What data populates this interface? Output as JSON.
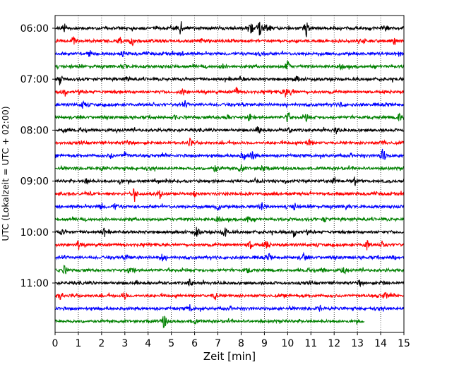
{
  "chart_data": {
    "type": "line",
    "title": "",
    "xlabel": "Zeit  [min]",
    "ylabel": "UTC (Lokalzeit = UTC + 02:00)",
    "xlim": [
      0,
      15
    ],
    "x_ticks": [
      "0",
      "1",
      "2",
      "3",
      "4",
      "5",
      "6",
      "7",
      "8",
      "9",
      "10",
      "11",
      "12",
      "13",
      "14",
      "15"
    ],
    "y_ticks": [
      "06:00",
      "07:00",
      "08:00",
      "09:00",
      "10:00",
      "11:00"
    ],
    "row_interval_min": 15,
    "row_colors": [
      "#000000",
      "#ff0000",
      "#0000ff",
      "#008000"
    ],
    "grid": "vertical dotted",
    "rows": [
      {
        "start": "06:00",
        "color": "#000000",
        "end_min": 15,
        "events": [
          [
            0.4,
            0.5
          ],
          [
            5.4,
            1.0
          ],
          [
            8.4,
            1.0
          ],
          [
            8.8,
            1.0
          ],
          [
            9.1,
            0.6
          ],
          [
            10.8,
            1.0
          ],
          [
            14.2,
            0.4
          ]
        ]
      },
      {
        "start": "06:15",
        "color": "#ff0000",
        "end_min": 15,
        "events": [
          [
            0.8,
            0.4
          ],
          [
            2.8,
            0.4
          ],
          [
            3.3,
            0.6
          ],
          [
            6.3,
            0.3
          ],
          [
            13.3,
            0.3
          ],
          [
            14.6,
            0.4
          ]
        ]
      },
      {
        "start": "06:30",
        "color": "#0000ff",
        "end_min": 15,
        "events": [
          [
            1.5,
            0.3
          ],
          [
            2.9,
            0.3
          ],
          [
            5.5,
            0.3
          ],
          [
            8.9,
            0.5
          ],
          [
            14.8,
            0.4
          ]
        ]
      },
      {
        "start": "06:45",
        "color": "#008000",
        "end_min": 15,
        "events": [
          [
            3.0,
            0.3
          ],
          [
            7.2,
            0.3
          ],
          [
            10.0,
            0.7
          ],
          [
            12.3,
            0.3
          ]
        ]
      },
      {
        "start": "07:00",
        "color": "#000000",
        "end_min": 15,
        "events": [
          [
            0.2,
            0.6
          ],
          [
            3.1,
            0.3
          ],
          [
            8.0,
            0.3
          ],
          [
            10.4,
            0.3
          ]
        ]
      },
      {
        "start": "07:15",
        "color": "#ff0000",
        "end_min": 15,
        "events": [
          [
            0.4,
            0.4
          ],
          [
            5.5,
            0.4
          ],
          [
            7.8,
            0.5
          ],
          [
            9.9,
            0.6
          ],
          [
            10.2,
            0.6
          ]
        ]
      },
      {
        "start": "07:30",
        "color": "#0000ff",
        "end_min": 15,
        "events": [
          [
            1.2,
            0.4
          ],
          [
            5.6,
            0.3
          ],
          [
            12.3,
            0.3
          ]
        ]
      },
      {
        "start": "07:45",
        "color": "#008000",
        "end_min": 15,
        "events": [
          [
            5.1,
            0.4
          ],
          [
            7.4,
            0.4
          ],
          [
            8.4,
            0.5
          ],
          [
            10.0,
            0.7
          ],
          [
            10.8,
            0.4
          ],
          [
            14.8,
            0.5
          ]
        ]
      },
      {
        "start": "08:00",
        "color": "#000000",
        "end_min": 15,
        "events": [
          [
            0.4,
            0.4
          ],
          [
            8.8,
            0.4
          ],
          [
            10.1,
            0.4
          ],
          [
            12.1,
            0.5
          ]
        ]
      },
      {
        "start": "08:15",
        "color": "#ff0000",
        "end_min": 15,
        "events": [
          [
            3.1,
            0.3
          ],
          [
            5.8,
            0.5
          ],
          [
            10.9,
            0.6
          ],
          [
            14.1,
            0.3
          ]
        ]
      },
      {
        "start": "08:30",
        "color": "#0000ff",
        "end_min": 15,
        "events": [
          [
            2.4,
            0.3
          ],
          [
            3.0,
            0.4
          ],
          [
            8.1,
            0.6
          ],
          [
            8.5,
            0.6
          ],
          [
            14.1,
            1.0
          ]
        ]
      },
      {
        "start": "08:45",
        "color": "#008000",
        "end_min": 15,
        "events": [
          [
            2.0,
            0.3
          ],
          [
            6.9,
            0.5
          ],
          [
            8.0,
            0.5
          ],
          [
            8.9,
            0.5
          ]
        ]
      },
      {
        "start": "09:00",
        "color": "#000000",
        "end_min": 15,
        "events": [
          [
            1.4,
            0.5
          ],
          [
            2.8,
            0.3
          ],
          [
            12.0,
            0.4
          ],
          [
            12.9,
            0.4
          ]
        ]
      },
      {
        "start": "09:15",
        "color": "#ff0000",
        "end_min": 15,
        "events": [
          [
            3.4,
            1.0
          ],
          [
            4.5,
            0.6
          ],
          [
            6.0,
            0.3
          ]
        ]
      },
      {
        "start": "09:30",
        "color": "#0000ff",
        "end_min": 15,
        "events": [
          [
            2.0,
            0.4
          ],
          [
            2.6,
            0.4
          ],
          [
            7.0,
            0.6
          ],
          [
            8.9,
            0.5
          ],
          [
            10.3,
            0.5
          ],
          [
            12.5,
            0.3
          ]
        ]
      },
      {
        "start": "09:45",
        "color": "#008000",
        "end_min": 15,
        "events": [
          [
            7.0,
            0.4
          ],
          [
            8.3,
            0.4
          ],
          [
            11.6,
            0.3
          ]
        ]
      },
      {
        "start": "10:00",
        "color": "#000000",
        "end_min": 15,
        "events": [
          [
            0.3,
            0.3
          ],
          [
            2.1,
            0.4
          ],
          [
            6.1,
            0.6
          ],
          [
            7.3,
            0.9
          ],
          [
            10.3,
            0.5
          ]
        ]
      },
      {
        "start": "10:15",
        "color": "#ff0000",
        "end_min": 15,
        "events": [
          [
            1.0,
            0.6
          ],
          [
            8.4,
            0.5
          ],
          [
            9.1,
            0.5
          ],
          [
            13.4,
            0.6
          ],
          [
            14.1,
            0.4
          ]
        ]
      },
      {
        "start": "10:30",
        "color": "#0000ff",
        "end_min": 15,
        "events": [
          [
            3.1,
            0.3
          ],
          [
            4.6,
            0.5
          ],
          [
            9.2,
            0.4
          ],
          [
            10.7,
            0.5
          ],
          [
            14.6,
            0.4
          ]
        ]
      },
      {
        "start": "10:45",
        "color": "#008000",
        "end_min": 15,
        "events": [
          [
            0.4,
            0.5
          ],
          [
            3.3,
            0.6
          ],
          [
            8.3,
            0.3
          ],
          [
            11.5,
            0.3
          ],
          [
            12.4,
            0.4
          ]
        ]
      },
      {
        "start": "11:00",
        "color": "#000000",
        "end_min": 15,
        "events": [
          [
            5.8,
            0.5
          ],
          [
            13.1,
            0.3
          ],
          [
            14.1,
            0.3
          ]
        ]
      },
      {
        "start": "11:15",
        "color": "#ff0000",
        "end_min": 15,
        "events": [
          [
            0.2,
            0.6
          ],
          [
            3.0,
            0.4
          ],
          [
            6.9,
            0.5
          ],
          [
            14.2,
            0.5
          ]
        ]
      },
      {
        "start": "11:30",
        "color": "#0000ff",
        "end_min": 15,
        "events": [
          [
            5.8,
            0.4
          ],
          [
            11.4,
            0.3
          ]
        ]
      },
      {
        "start": "11:45",
        "color": "#008000",
        "end_min": 13.3,
        "events": [
          [
            4.7,
            1.0
          ],
          [
            6.0,
            0.3
          ]
        ]
      }
    ]
  }
}
